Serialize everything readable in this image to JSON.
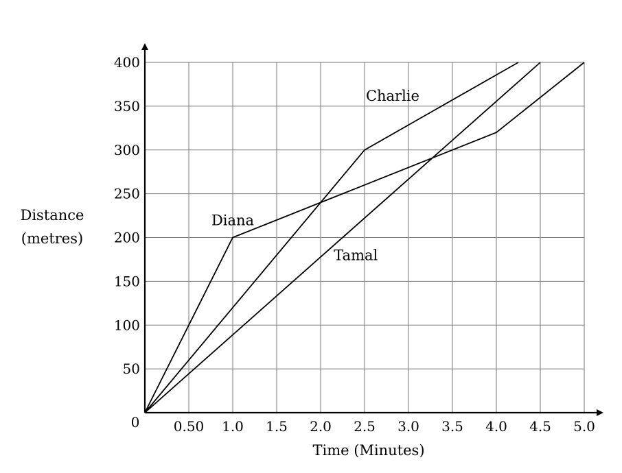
{
  "chart_data": {
    "type": "line",
    "xlabel": "Time (Minutes)",
    "ylabel_lines": [
      "Distance",
      "(metres)"
    ],
    "origin_label": "0",
    "xlim": [
      0,
      5
    ],
    "ylim": [
      0,
      400
    ],
    "grid": true,
    "x_ticks": [
      {
        "value": 0.5,
        "label": "0.50"
      },
      {
        "value": 1.0,
        "label": "1.0"
      },
      {
        "value": 1.5,
        "label": "1.5"
      },
      {
        "value": 2.0,
        "label": "2.0"
      },
      {
        "value": 2.5,
        "label": "2.5"
      },
      {
        "value": 3.0,
        "label": "3.0"
      },
      {
        "value": 3.5,
        "label": "3.5"
      },
      {
        "value": 4.0,
        "label": "4.0"
      },
      {
        "value": 4.5,
        "label": "4.5"
      },
      {
        "value": 5.0,
        "label": "5.0"
      }
    ],
    "y_ticks": [
      {
        "value": 50,
        "label": "50"
      },
      {
        "value": 100,
        "label": "100"
      },
      {
        "value": 150,
        "label": "150"
      },
      {
        "value": 200,
        "label": "200"
      },
      {
        "value": 250,
        "label": "250"
      },
      {
        "value": 300,
        "label": "300"
      },
      {
        "value": 350,
        "label": "350"
      },
      {
        "value": 400,
        "label": "400"
      }
    ],
    "series": [
      {
        "name": "Diana",
        "points": [
          [
            0,
            0
          ],
          [
            1.0,
            200
          ],
          [
            4.0,
            320
          ],
          [
            5.0,
            400
          ]
        ],
        "label_at": [
          1.0,
          214
        ]
      },
      {
        "name": "Charlie",
        "points": [
          [
            0,
            0
          ],
          [
            2.5,
            300
          ],
          [
            4.25,
            400
          ]
        ],
        "label_at": [
          2.82,
          356
        ]
      },
      {
        "name": "Tamal",
        "points": [
          [
            0,
            0
          ],
          [
            4.5,
            400
          ]
        ],
        "label_at": [
          2.4,
          174
        ]
      }
    ]
  }
}
